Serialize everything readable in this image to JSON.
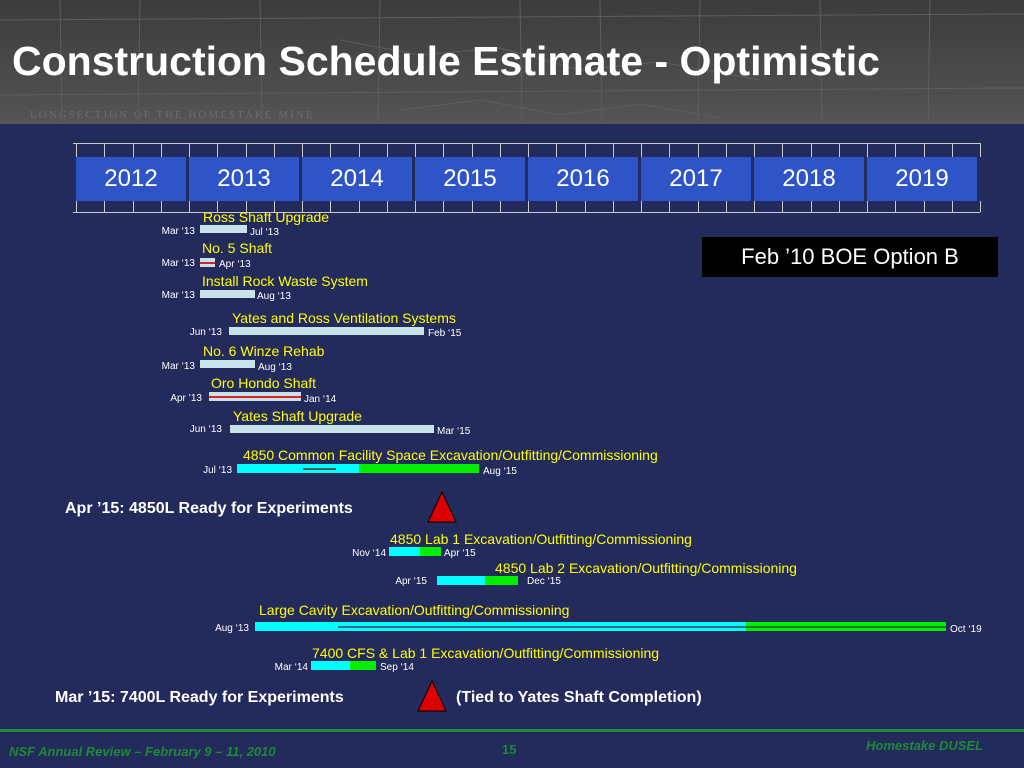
{
  "title": "Construction Schedule Estimate - Optimistic",
  "header_background_label": "LONGSECTION OF THE HOMESTAKE MINE",
  "years": [
    "2012",
    "2013",
    "2014",
    "2015",
    "2016",
    "2017",
    "2018",
    "2019"
  ],
  "option_box": "Feb ’10 BOE Option B",
  "tasks": [
    {
      "label": "Ross Shaft Upgrade",
      "start": "Mar ‘13",
      "end": "Jul ‘13"
    },
    {
      "label": "No. 5 Shaft",
      "start": "Mar ‘13",
      "end": "Apr ‘13"
    },
    {
      "label": "Install Rock Waste System",
      "start": "Mar ‘13",
      "end": "Aug ‘13"
    },
    {
      "label": "Yates and Ross Ventilation Systems",
      "start": "Jun ‘13",
      "end": "Feb ‘15"
    },
    {
      "label": "No. 6 Winze Rehab",
      "start": "Mar  ‘13",
      "end": "Aug ‘13"
    },
    {
      "label": "Oro Hondo Shaft",
      "start": "Apr ’13",
      "end": "Jan ‘14"
    },
    {
      "label": "Yates Shaft Upgrade",
      "start": "Jun ‘13",
      "end": "Mar ‘15"
    },
    {
      "label": "4850 Common Facility Space Excavation/Outfitting/Commissioning",
      "start": "Jul ‘13",
      "end": "Aug ‘15"
    },
    {
      "label": "4850 Lab 1 Excavation/Outfitting/Commissioning",
      "start": "Nov ‘14",
      "end": "Apr ‘15"
    },
    {
      "label": "4850 Lab 2 Excavation/Outfitting/Commissioning",
      "start": "Apr ‘15",
      "end": "Dec ‘15"
    },
    {
      "label": "Large Cavity Excavation/Outfitting/Commissioning",
      "start": "Aug ‘13",
      "end": "Oct ‘19"
    },
    {
      "label": "7400 CFS & Lab 1 Excavation/Outfitting/Commissioning",
      "start": "Mar ‘14",
      "end": "Sep ‘14"
    }
  ],
  "milestones": [
    {
      "date": "Apr ’15:",
      "text": " 4850L Ready for Experiments",
      "note": ""
    },
    {
      "date": "Mar ’15:",
      "text": " 7400L Ready for Experiments",
      "note": "(Tied to Yates Shaft Completion)"
    }
  ],
  "footer": {
    "left": "NSF Annual Review – February 9 – 11, 2010",
    "page": "15",
    "right": "Homestake DUSEL"
  },
  "colors": {
    "background": "#232a5c",
    "year_cell": "#2f54c8",
    "task_label": "#ffff00",
    "bar_light": "#c8e2ea",
    "bar_cyan": "#00ffff",
    "bar_green": "#00ee00",
    "milestone_red": "#dd0000",
    "footer": "#1e8a35"
  }
}
